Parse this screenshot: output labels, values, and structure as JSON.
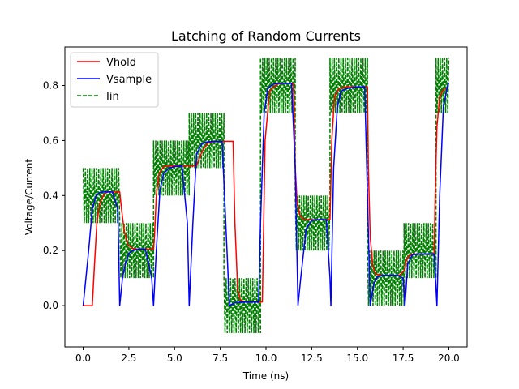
{
  "chart_data": {
    "type": "line",
    "title": "Latching of Random Currents",
    "xlabel": "Time (ns)",
    "ylabel": "Voltage/Current",
    "xlim": [
      -1.0,
      21.0
    ],
    "ylim": [
      -0.15,
      0.94
    ],
    "x_ticks": [
      0,
      2.5,
      5,
      7.5,
      10,
      12.5,
      15,
      17.5,
      20
    ],
    "x_tick_labels": [
      "0.0",
      "2.5",
      "5.0",
      "7.5",
      "10.0",
      "12.5",
      "15.0",
      "17.5",
      "20.0"
    ],
    "y_ticks": [
      0,
      0.2,
      0.4,
      0.6,
      0.8
    ],
    "y_tick_labels": [
      "0.0",
      "0.2",
      "0.4",
      "0.6",
      "0.8"
    ],
    "grid": false,
    "legend_position": "top-left",
    "colors": {
      "Vhold": "#ff0000",
      "Vsample": "#0000ff",
      "Iin": "#008000"
    },
    "series": [
      {
        "name": "Vhold",
        "style": "solid",
        "x": [
          0.0,
          0.5,
          0.62,
          0.75,
          0.9,
          1.1,
          1.3,
          1.6,
          1.95,
          2.0,
          2.1,
          2.25,
          2.45,
          2.7,
          3.0,
          3.4,
          3.85,
          3.9,
          4.0,
          4.15,
          4.4,
          4.7,
          5.0,
          5.4,
          5.8,
          6.2,
          6.5,
          6.8,
          7.2,
          7.7,
          8.2,
          8.3,
          8.45,
          8.6,
          8.8,
          9.1,
          9.5,
          9.8,
          9.85,
          9.95,
          10.2,
          10.6,
          11.0,
          11.5,
          11.6,
          11.7,
          11.85,
          12.0,
          12.3,
          12.8,
          13.3,
          13.5,
          13.6,
          13.75,
          14.0,
          14.4,
          15.0,
          15.55,
          15.6,
          15.7,
          15.85,
          16.0,
          16.3,
          16.8,
          17.3,
          17.6,
          17.65,
          17.8,
          18.0,
          18.5,
          19.2,
          19.25,
          19.35,
          19.5,
          19.7,
          19.9
        ],
        "values": [
          0.0,
          0.0,
          0.15,
          0.3,
          0.37,
          0.4,
          0.413,
          0.413,
          0.413,
          0.413,
          0.35,
          0.27,
          0.22,
          0.208,
          0.205,
          0.205,
          0.205,
          0.25,
          0.4,
          0.48,
          0.505,
          0.508,
          0.508,
          0.508,
          0.508,
          0.508,
          0.56,
          0.59,
          0.597,
          0.597,
          0.597,
          0.3,
          0.06,
          0.02,
          0.013,
          0.013,
          0.013,
          0.013,
          0.2,
          0.6,
          0.78,
          0.805,
          0.808,
          0.808,
          0.5,
          0.38,
          0.33,
          0.315,
          0.312,
          0.312,
          0.312,
          0.312,
          0.6,
          0.76,
          0.79,
          0.795,
          0.795,
          0.795,
          0.5,
          0.25,
          0.14,
          0.115,
          0.11,
          0.11,
          0.11,
          0.13,
          0.16,
          0.18,
          0.187,
          0.187,
          0.187,
          0.4,
          0.65,
          0.76,
          0.785,
          0.79
        ]
      },
      {
        "name": "Vsample",
        "style": "solid",
        "x": [
          0.0,
          0.15,
          0.3,
          0.5,
          0.7,
          0.9,
          1.1,
          1.3,
          1.6,
          1.9,
          2.0,
          2.15,
          2.3,
          2.5,
          2.7,
          3.0,
          3.4,
          3.75,
          3.85,
          4.0,
          4.2,
          4.4,
          4.7,
          5.0,
          5.4,
          5.7,
          5.8,
          6.0,
          6.2,
          6.5,
          6.8,
          7.2,
          7.6,
          7.8,
          8.0,
          8.3,
          8.6,
          9.0,
          9.3,
          9.6,
          9.7,
          9.9,
          10.1,
          10.4,
          10.7,
          11.0,
          11.4,
          11.6,
          11.75,
          11.9,
          12.2,
          12.5,
          12.9,
          13.3,
          13.5,
          13.55,
          13.7,
          13.9,
          14.1,
          14.5,
          15.0,
          15.4,
          15.55,
          15.7,
          15.9,
          16.1,
          16.4,
          16.8,
          17.2,
          17.5,
          17.6,
          17.75,
          18.0,
          18.4,
          18.8,
          19.2,
          19.35,
          19.5,
          19.7,
          19.9,
          20.0
        ],
        "values": [
          0.0,
          0.1,
          0.2,
          0.35,
          0.4,
          0.41,
          0.413,
          0.413,
          0.413,
          0.35,
          0.0,
          0.1,
          0.15,
          0.19,
          0.2,
          0.205,
          0.205,
          0.1,
          0.0,
          0.2,
          0.42,
          0.48,
          0.5,
          0.505,
          0.508,
          0.3,
          0.0,
          0.3,
          0.55,
          0.59,
          0.595,
          0.597,
          0.597,
          0.3,
          0.0,
          0.01,
          0.012,
          0.013,
          0.013,
          0.013,
          0.3,
          0.7,
          0.79,
          0.805,
          0.808,
          0.808,
          0.808,
          0.5,
          0.0,
          0.1,
          0.28,
          0.31,
          0.312,
          0.312,
          0.1,
          0.0,
          0.5,
          0.72,
          0.78,
          0.79,
          0.795,
          0.795,
          0.4,
          0.0,
          0.08,
          0.105,
          0.11,
          0.11,
          0.11,
          0.1,
          0.0,
          0.15,
          0.185,
          0.187,
          0.187,
          0.187,
          0.0,
          0.4,
          0.72,
          0.79,
          0.81
        ]
      },
      {
        "name": "Iin",
        "style": "dashed",
        "segments": [
          {
            "x_start": 0.0,
            "x_end": 2.0,
            "center": 0.4,
            "amplitude": 0.1
          },
          {
            "x_start": 2.0,
            "x_end": 3.85,
            "center": 0.2,
            "amplitude": 0.1
          },
          {
            "x_start": 3.85,
            "x_end": 5.8,
            "center": 0.5,
            "amplitude": 0.1
          },
          {
            "x_start": 5.8,
            "x_end": 7.7,
            "center": 0.6,
            "amplitude": 0.1
          },
          {
            "x_start": 7.7,
            "x_end": 9.7,
            "center": 0.0,
            "amplitude": 0.1
          },
          {
            "x_start": 9.7,
            "x_end": 11.6,
            "center": 0.8,
            "amplitude": 0.1
          },
          {
            "x_start": 11.6,
            "x_end": 13.5,
            "center": 0.3,
            "amplitude": 0.1
          },
          {
            "x_start": 13.5,
            "x_end": 15.55,
            "center": 0.8,
            "amplitude": 0.1
          },
          {
            "x_start": 15.55,
            "x_end": 17.55,
            "center": 0.1,
            "amplitude": 0.1
          },
          {
            "x_start": 17.55,
            "x_end": 19.3,
            "center": 0.2,
            "amplitude": 0.1
          },
          {
            "x_start": 19.3,
            "x_end": 20.0,
            "center": 0.8,
            "amplitude": 0.1
          }
        ],
        "oscillation_period": 0.12
      }
    ]
  }
}
